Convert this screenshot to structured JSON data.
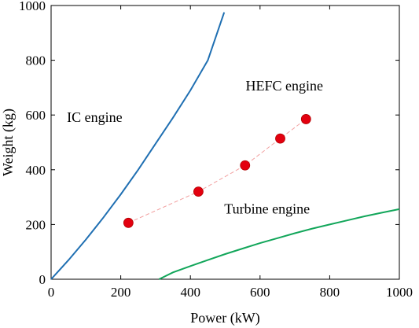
{
  "chart_data": {
    "type": "line",
    "xlabel": "Power (kW)",
    "ylabel": "Weight (kg)",
    "xlim": [
      0,
      1000
    ],
    "ylim": [
      0,
      1000
    ],
    "xticks": [
      "0",
      "200",
      "400",
      "600",
      "800",
      "1000"
    ],
    "yticks": [
      "0",
      "200",
      "400",
      "600",
      "800",
      "1000"
    ],
    "grid": false,
    "series": [
      {
        "name": "IC engine",
        "style": "solid line",
        "color": "#1f6fb2",
        "x": [
          0,
          25,
          50,
          100,
          150,
          200,
          250,
          300,
          350,
          400,
          450,
          497
        ],
        "y": [
          0,
          35,
          70,
          145,
          225,
          310,
          400,
          495,
          590,
          690,
          800,
          975
        ]
      },
      {
        "name": "Turbine engine",
        "style": "solid line",
        "color": "#12a65a",
        "x": [
          310,
          350,
          400,
          450,
          500,
          550,
          600,
          650,
          700,
          750,
          800,
          850,
          900,
          950,
          1000
        ],
        "y": [
          0,
          25,
          48,
          70,
          92,
          112,
          132,
          150,
          168,
          185,
          200,
          215,
          230,
          243,
          256
        ]
      },
      {
        "name": "HEFC engine",
        "style": "dashed line with markers",
        "color": "#f2a0a0",
        "marker_color": "#e3000f",
        "x": [
          222,
          423,
          557,
          658,
          732
        ],
        "y": [
          206,
          320,
          416,
          514,
          585
        ]
      }
    ],
    "annotations": [
      {
        "text": "IC engine",
        "x": 125,
        "y": 575
      },
      {
        "text": "HEFC engine",
        "x": 670,
        "y": 690
      },
      {
        "text": "Turbine engine",
        "x": 620,
        "y": 240
      }
    ]
  }
}
